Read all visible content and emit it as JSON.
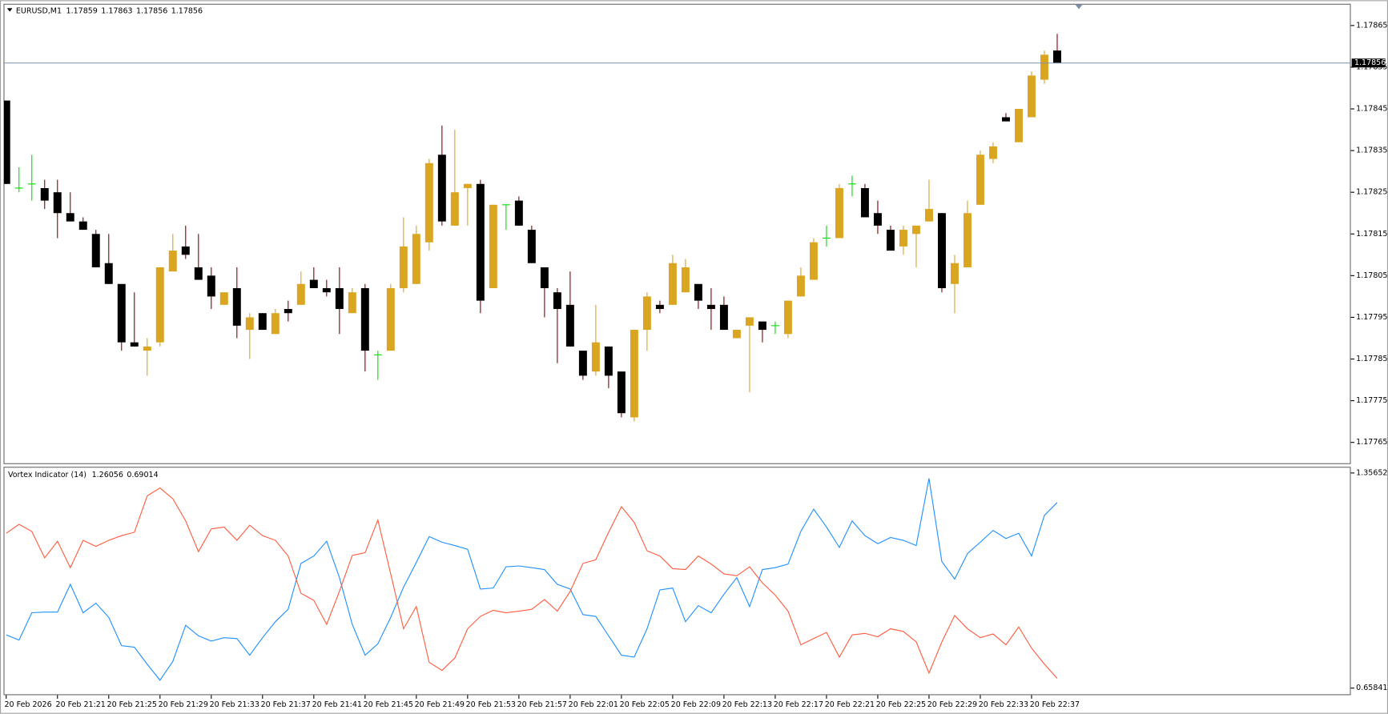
{
  "chart_data": [
    {
      "type": "candlestick",
      "title": "EURUSD,M1",
      "categories": [
        "20 Feb 2026",
        null,
        null,
        null,
        "20 Feb 21:21",
        null,
        null,
        null,
        "20 Feb 21:25",
        null,
        null,
        null,
        "20 Feb 21:29",
        null,
        null,
        null,
        "20 Feb 21:33",
        null,
        null,
        null,
        "20 Feb 21:37",
        null,
        null,
        null,
        "20 Feb 21:41",
        null,
        null,
        null,
        "20 Feb 21:45",
        null,
        null,
        null,
        "20 Feb 21:49",
        null,
        null,
        null,
        "20 Feb 21:53",
        null,
        null,
        null,
        "20 Feb 21:57",
        null,
        null,
        null,
        "20 Feb 22:01",
        null,
        null,
        null,
        "20 Feb 22:05",
        null,
        null,
        null,
        "20 Feb 22:09",
        null,
        null,
        null,
        "20 Feb 22:13",
        null,
        null,
        null,
        "20 Feb 22:17",
        null,
        null,
        null,
        "20 Feb 22:21",
        null,
        null,
        null,
        "20 Feb 22:25",
        null,
        null,
        null,
        "20 Feb 22:29",
        null,
        null,
        null,
        "20 Feb 22:33",
        null,
        null,
        null,
        "20 Feb 22:37",
        null,
        null
      ],
      "open": [
        1.17847,
        1.17826,
        1.17827,
        1.17826,
        1.17825,
        1.1782,
        1.17818,
        1.17815,
        1.17808,
        1.17803,
        1.17789,
        1.17787,
        1.17789,
        1.17806,
        1.17812,
        1.17807,
        1.17805,
        1.17798,
        1.17802,
        1.17792,
        1.17796,
        1.17791,
        1.17797,
        1.17798,
        1.17804,
        1.17802,
        1.17802,
        1.17796,
        1.17802,
        1.17786,
        1.17787,
        1.17802,
        1.17803,
        1.17813,
        1.17834,
        1.17817,
        1.17826,
        1.17827,
        1.17802,
        1.17822,
        1.17823,
        1.17816,
        1.17807,
        1.17801,
        1.17798,
        1.17787,
        1.17782,
        1.17788,
        1.17782,
        1.17771,
        1.17792,
        1.17798,
        1.17798,
        1.17801,
        1.17803,
        1.17798,
        1.17798,
        1.1779,
        1.17793,
        1.17794,
        1.17793,
        1.17791,
        1.178,
        1.17804,
        1.17814,
        1.17814,
        1.17827,
        1.17826,
        1.1782,
        1.17816,
        1.17812,
        1.17815,
        1.17818,
        1.1782,
        1.17803,
        1.17807,
        1.17822,
        1.17833,
        1.17843,
        1.17837,
        1.17843,
        1.17852,
        1.17859
      ],
      "high": [
        1.17847,
        1.17831,
        1.17834,
        1.17828,
        1.17828,
        1.17825,
        1.17819,
        1.17816,
        1.17815,
        1.17803,
        1.17801,
        1.1779,
        1.17807,
        1.17815,
        1.17817,
        1.17815,
        1.17807,
        1.17801,
        1.17807,
        1.17796,
        1.17796,
        1.17797,
        1.17799,
        1.17806,
        1.17807,
        1.17804,
        1.17807,
        1.17802,
        1.17803,
        1.17787,
        1.17803,
        1.17819,
        1.17817,
        1.17833,
        1.17841,
        1.1784,
        1.17827,
        1.17828,
        1.17822,
        1.17822,
        1.17824,
        1.17817,
        1.17807,
        1.17802,
        1.17806,
        1.17787,
        1.17798,
        1.17788,
        1.17782,
        1.17792,
        1.17801,
        1.17799,
        1.1781,
        1.17809,
        1.17803,
        1.17802,
        1.178,
        1.17792,
        1.17795,
        1.17794,
        1.17794,
        1.17799,
        1.17807,
        1.17814,
        1.17817,
        1.17827,
        1.17829,
        1.17827,
        1.17823,
        1.17817,
        1.17817,
        1.17817,
        1.17828,
        1.1782,
        1.1781,
        1.17823,
        1.17835,
        1.17837,
        1.17844,
        1.17845,
        1.17854,
        1.17859,
        1.17863
      ],
      "low": [
        1.17827,
        1.17825,
        1.17823,
        1.17821,
        1.17814,
        1.17818,
        1.17816,
        1.17807,
        1.17803,
        1.17787,
        1.17788,
        1.17781,
        1.17788,
        1.17806,
        1.17809,
        1.17804,
        1.17797,
        1.17798,
        1.1779,
        1.17785,
        1.17792,
        1.17791,
        1.17794,
        1.17798,
        1.17802,
        1.178,
        1.17791,
        1.17796,
        1.17782,
        1.1778,
        1.17787,
        1.17801,
        1.17803,
        1.17811,
        1.17817,
        1.17817,
        1.17817,
        1.17796,
        1.17802,
        1.17816,
        1.17817,
        1.17808,
        1.17795,
        1.17784,
        1.17788,
        1.1778,
        1.17781,
        1.17778,
        1.17771,
        1.1777,
        1.17787,
        1.17796,
        1.17798,
        1.17801,
        1.17797,
        1.17792,
        1.17792,
        1.1779,
        1.17777,
        1.17789,
        1.17791,
        1.1779,
        1.178,
        1.17804,
        1.17812,
        1.17814,
        1.17824,
        1.17819,
        1.17815,
        1.17811,
        1.1781,
        1.17807,
        1.17818,
        1.17801,
        1.17796,
        1.17807,
        1.17822,
        1.17832,
        1.17842,
        1.17837,
        1.17843,
        1.17851,
        1.17856
      ],
      "close": [
        1.17827,
        1.17826,
        1.17827,
        1.17823,
        1.1782,
        1.17818,
        1.17816,
        1.17807,
        1.17803,
        1.17789,
        1.17788,
        1.17788,
        1.17807,
        1.17811,
        1.1781,
        1.17804,
        1.178,
        1.17801,
        1.17793,
        1.17795,
        1.17792,
        1.17796,
        1.17796,
        1.17803,
        1.17802,
        1.17801,
        1.17797,
        1.17801,
        1.17787,
        1.17786,
        1.17802,
        1.17812,
        1.17815,
        1.17832,
        1.17818,
        1.17825,
        1.17827,
        1.17799,
        1.17822,
        1.17822,
        1.17817,
        1.17808,
        1.17802,
        1.17797,
        1.17788,
        1.17781,
        1.17789,
        1.17781,
        1.17772,
        1.17792,
        1.178,
        1.17797,
        1.17808,
        1.17807,
        1.17799,
        1.17797,
        1.17792,
        1.17792,
        1.17795,
        1.17792,
        1.17793,
        1.17799,
        1.17805,
        1.17813,
        1.17814,
        1.17826,
        1.17827,
        1.17819,
        1.17817,
        1.17811,
        1.17816,
        1.17817,
        1.17821,
        1.17802,
        1.17808,
        1.1782,
        1.17834,
        1.17836,
        1.17842,
        1.17845,
        1.17853,
        1.17858,
        1.17856
      ],
      "ylim": [
        1.1776,
        1.1787
      ],
      "yticks": [
        1.17865,
        1.17855,
        1.17845,
        1.17835,
        1.17825,
        1.17815,
        1.17805,
        1.17795,
        1.17785,
        1.17775,
        1.17765
      ],
      "grid": false,
      "up_color": "#daa520",
      "down_color": "#000000",
      "down_wick_color": "#8b0000",
      "doji_color": "#00e000",
      "price_line_color": "#7b8fa8"
    },
    {
      "type": "line",
      "title": "Vortex Indicator (14)",
      "series": [
        {
          "color": "#1e90ff",
          "values": [
            0.831,
            0.814,
            0.903,
            0.905,
            0.905,
            0.995,
            0.903,
            0.934,
            0.888,
            0.796,
            0.791,
            0.736,
            0.684,
            0.745,
            0.862,
            0.828,
            0.811,
            0.822,
            0.819,
            0.765,
            0.822,
            0.874,
            0.914,
            1.063,
            1.087,
            1.135,
            1.017,
            0.865,
            0.765,
            0.802,
            0.888,
            0.986,
            1.066,
            1.15,
            1.132,
            1.121,
            1.109,
            0.98,
            0.983,
            1.052,
            1.055,
            1.049,
            1.043,
            0.995,
            0.98,
            0.897,
            0.891,
            0.828,
            0.765,
            0.759,
            0.851,
            0.977,
            0.983,
            0.874,
            0.926,
            0.903,
            0.963,
            1.017,
            0.923,
            1.043,
            1.049,
            1.061,
            1.167,
            1.239,
            1.181,
            1.115,
            1.201,
            1.153,
            1.127,
            1.147,
            1.138,
            1.121,
            1.339,
            1.069,
            1.012,
            1.095,
            1.132,
            1.17,
            1.144,
            1.161,
            1.087,
            1.219,
            1.26056
          ]
        },
        {
          "color": "#ff5a3c",
          "values": [
            1.161,
            1.19,
            1.167,
            1.081,
            1.135,
            1.049,
            1.138,
            1.118,
            1.138,
            1.153,
            1.164,
            1.282,
            1.308,
            1.273,
            1.201,
            1.101,
            1.175,
            1.181,
            1.138,
            1.187,
            1.153,
            1.138,
            1.087,
            0.966,
            0.943,
            0.865,
            0.972,
            1.089,
            1.098,
            1.204,
            1.029,
            0.851,
            0.923,
            0.742,
            0.716,
            0.756,
            0.851,
            0.891,
            0.911,
            0.903,
            0.908,
            0.914,
            0.946,
            0.908,
            0.972,
            1.063,
            1.075,
            1.164,
            1.247,
            1.196,
            1.104,
            1.087,
            1.046,
            1.043,
            1.087,
            1.061,
            1.029,
            1.023,
            1.052,
            1.0,
            0.96,
            0.908,
            0.799,
            0.819,
            0.839,
            0.759,
            0.831,
            0.836,
            0.825,
            0.851,
            0.842,
            0.808,
            0.707,
            0.808,
            0.894,
            0.851,
            0.822,
            0.834,
            0.799,
            0.857,
            0.788,
            0.736,
            0.69014
          ]
        }
      ],
      "ylim": [
        0.65841,
        1.35652
      ],
      "yticks": [
        1.35652,
        0.65841
      ],
      "grid": false
    }
  ]
}
